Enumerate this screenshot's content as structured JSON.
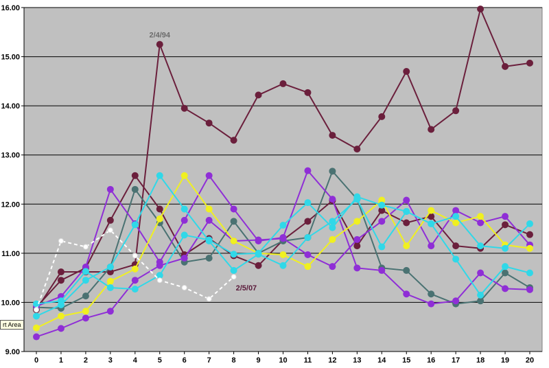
{
  "chart_data": {
    "type": "line",
    "title": "",
    "xlabel": "",
    "ylabel": "",
    "xlim": [
      0,
      20
    ],
    "ylim": [
      9,
      16
    ],
    "x": [
      0,
      1,
      2,
      3,
      4,
      5,
      6,
      7,
      8,
      9,
      10,
      11,
      12,
      13,
      14,
      15,
      16,
      17,
      18,
      19,
      20
    ],
    "x_tick_labels": [
      "0",
      "1",
      "2",
      "3",
      "4",
      "5",
      "6",
      "7",
      "8",
      "9",
      "10",
      "11",
      "12",
      "13",
      "14",
      "15",
      "16",
      "17",
      "18",
      "19",
      "20"
    ],
    "y_tick_labels": [
      "9.00",
      "10.00",
      "11.00",
      "12.00",
      "13.00",
      "14.00",
      "15.00",
      "16.00"
    ],
    "grid": true,
    "legend": "none",
    "colors": {
      "plot_background": "#c0c0c0",
      "gridline": "#000000",
      "annotation_top": "#6b6b6b",
      "annotation_bottom": "#5a1a3a"
    },
    "series": [
      {
        "color": "#6b1f3c",
        "values": [
          9.85,
          10.62,
          10.62,
          10.62,
          10.77,
          15.25,
          13.95,
          13.65,
          13.3,
          14.22,
          14.45,
          14.27,
          13.4,
          13.12,
          13.78,
          14.7,
          13.52,
          13.9,
          15.97,
          14.8,
          14.87
        ]
      },
      {
        "color": "#6b1f3c",
        "values": [
          9.9,
          10.45,
          10.7,
          11.67,
          12.58,
          11.9,
          10.97,
          11.3,
          10.95,
          10.75,
          11.27,
          11.65,
          12.07,
          11.15,
          11.87,
          11.62,
          11.75,
          11.15,
          11.1,
          11.58,
          11.38
        ]
      },
      {
        "color": "#4a7272",
        "values": [
          9.9,
          9.88,
          10.13,
          10.72,
          12.3,
          11.62,
          10.82,
          10.9,
          11.65,
          11.0,
          11.25,
          11.32,
          12.67,
          12.1,
          10.7,
          10.65,
          10.17,
          9.97,
          10.03,
          10.6,
          10.3
        ]
      },
      {
        "color": "#8f2ed6",
        "values": [
          9.92,
          10.12,
          10.72,
          12.3,
          11.6,
          10.82,
          11.67,
          12.58,
          11.9,
          11.25,
          11.32,
          12.68,
          12.1,
          10.7,
          10.65,
          10.17,
          9.97,
          10.03,
          10.6,
          10.28,
          10.26
        ]
      },
      {
        "color": "#8f2ed6",
        "values": [
          9.3,
          9.47,
          9.68,
          9.82,
          10.45,
          10.75,
          10.9,
          11.67,
          11.25,
          11.27,
          11.3,
          10.97,
          10.73,
          11.28,
          11.65,
          12.08,
          11.15,
          11.87,
          11.62,
          11.75,
          11.17
        ]
      },
      {
        "color": "#f0f020",
        "values": [
          9.48,
          9.72,
          9.82,
          10.43,
          10.68,
          11.7,
          12.58,
          11.9,
          11.25,
          11.0,
          10.97,
          10.73,
          11.28,
          11.65,
          12.08,
          11.15,
          11.87,
          11.62,
          11.75,
          11.17,
          11.1
        ]
      },
      {
        "color": "#30d8e8",
        "values": [
          9.97,
          10.03,
          10.63,
          10.3,
          10.27,
          10.55,
          11.37,
          11.27,
          10.98,
          11.0,
          11.57,
          12.03,
          11.52,
          12.15,
          11.98,
          11.85,
          11.6,
          11.75,
          11.15,
          11.1,
          11.6
        ]
      },
      {
        "color": "#30d8e8",
        "values": [
          9.72,
          9.95,
          10.45,
          10.72,
          11.58,
          12.58,
          11.9,
          11.25,
          10.65,
          10.98,
          10.75,
          11.32,
          11.65,
          12.1,
          11.13,
          11.85,
          11.6,
          10.88,
          10.15,
          10.73,
          10.6
        ]
      },
      {
        "color": "#ffffff",
        "dashed": true,
        "values": [
          9.85,
          11.25,
          11.13,
          11.47,
          10.95,
          10.45,
          10.3,
          10.07,
          10.52,
          null,
          null,
          null,
          null,
          null,
          null,
          null,
          null,
          null,
          null,
          null,
          null
        ]
      }
    ],
    "annotations": [
      {
        "text": "2/4/94",
        "x": 5,
        "y": 15.25,
        "color": "#6b6b6b",
        "placement": "above"
      },
      {
        "text": "2/5/07",
        "x": 8,
        "y": 10.52,
        "color": "#5a1a3a",
        "placement": "right"
      }
    ]
  },
  "tooltip_text": "rt Area"
}
